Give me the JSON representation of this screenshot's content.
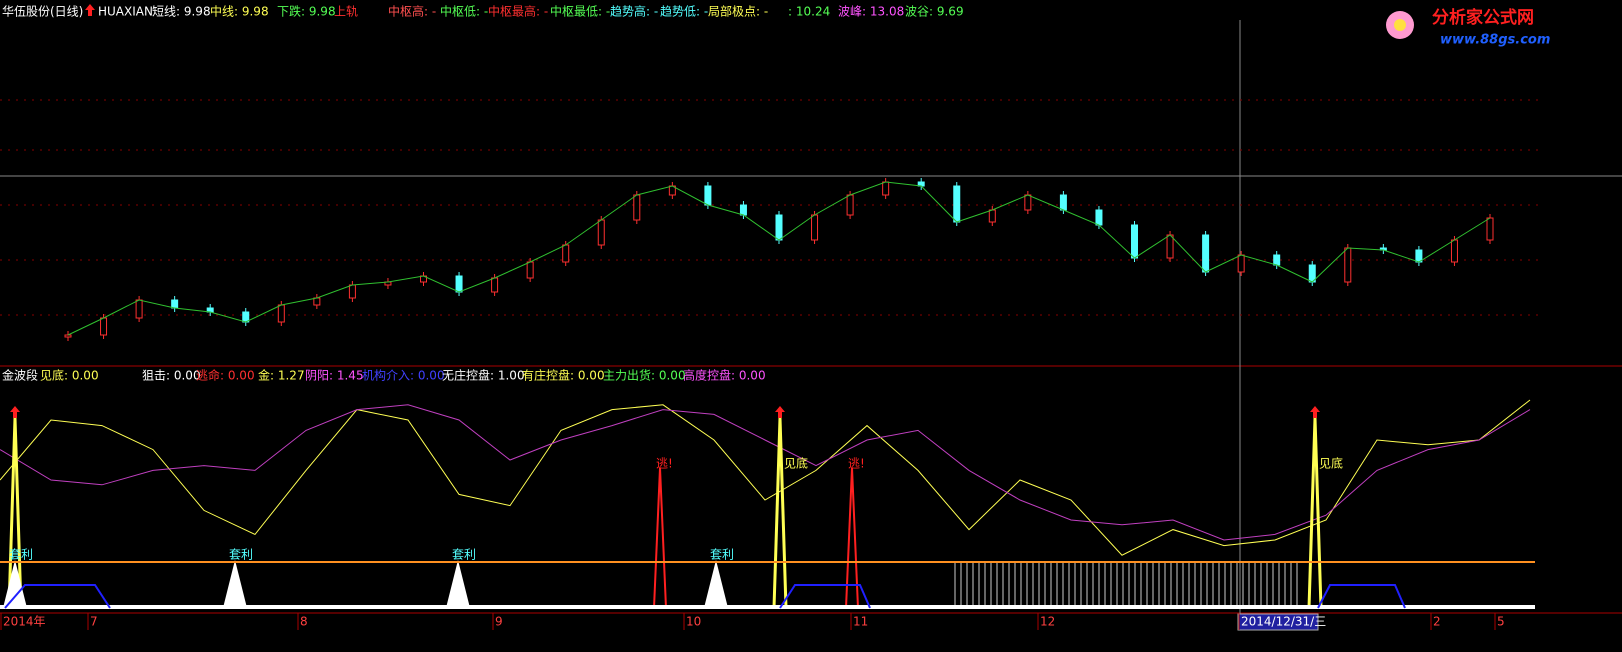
{
  "header": {
    "items": [
      {
        "text": "华伍股份(日线)",
        "color": "#ffffff"
      },
      {
        "text": "HUAXIAN",
        "color": "#ffffff"
      },
      {
        "text": "短线: 9.98",
        "color": "#ffffff"
      },
      {
        "text": "中线: 9.98",
        "color": "#ffff54"
      },
      {
        "text": "下跌: 9.98",
        "color": "#54ff54"
      },
      {
        "text": "上轨",
        "color": "#ff3030"
      },
      {
        "text": "中枢高: -",
        "color": "#ff5050"
      },
      {
        "text": "中枢低: -",
        "color": "#54ff54"
      },
      {
        "text": "中枢最高: -",
        "color": "#ff3030"
      },
      {
        "text": "中枢最低: -",
        "color": "#54ff54"
      },
      {
        "text": "趋势高: -",
        "color": "#54ffff"
      },
      {
        "text": "趋势低: -",
        "color": "#54ffff"
      },
      {
        "text": "局部极点: -",
        "color": "#ffff54"
      },
      {
        "text": ": 10.24",
        "color": "#54ff54"
      },
      {
        "text": "波峰: 13.08",
        "color": "#ff54ff"
      },
      {
        "text": "波谷: 9.69",
        "color": "#54ff54"
      }
    ]
  },
  "indicator_bar": {
    "items": [
      {
        "text": "金波段",
        "color": "#ffffff"
      },
      {
        "text": "见底: 0.00",
        "color": "#ffff54"
      },
      {
        "text": "狙击: 0.00",
        "color": "#ffffff"
      },
      {
        "text": "逃命: 0.00",
        "color": "#ff3030"
      },
      {
        "text": "金: 1.27",
        "color": "#ffff54"
      },
      {
        "text": "阴阳: 1.45",
        "color": "#ff54ff"
      },
      {
        "text": "机构介入: 0.00",
        "color": "#4040ff"
      },
      {
        "text": "无庄控盘: 1.00",
        "color": "#ffffff"
      },
      {
        "text": "有庄控盘: 0.00",
        "color": "#ffff54"
      },
      {
        "text": "主力出货: 0.00",
        "color": "#54ff54"
      },
      {
        "text": "高度控盘: 0.00",
        "color": "#ff54ff"
      }
    ]
  },
  "dates": [
    "2014年",
    "7",
    "8",
    "9",
    "10",
    "11",
    "12",
    "2014/12/31/三",
    "2",
    "5"
  ],
  "annotations": {
    "bottom": "见底",
    "escape": "逃!",
    "arbitrage": "套利"
  },
  "logo": {
    "title": "分析家公式网",
    "url": "www.88gs.com"
  },
  "price_chart": {
    "up_color": "#ff3030",
    "down_color": "#54ffff",
    "closes": [
      6.73,
      7.41,
      8.13,
      7.81,
      7.65,
      7.25,
      7.93,
      8.21,
      8.73,
      8.85,
      9.09,
      8.45,
      9.01,
      9.65,
      10.33,
      11.33,
      12.33,
      12.69,
      11.93,
      11.53,
      10.53,
      11.53,
      12.33,
      12.85,
      12.69,
      11.25,
      11.73,
      12.33,
      11.73,
      11.13,
      9.81,
      10.73,
      9.25,
      9.93,
      9.53,
      8.85,
      10.21,
      10.13,
      9.65,
      10.53,
      11.41
    ]
  },
  "oscillator": {
    "series": [
      {
        "color": "#ffff54",
        "values": [
          50,
          87.5,
          84,
          69,
          31,
          16,
          56,
          94,
          87.5,
          41,
          34,
          81,
          94,
          97,
          75,
          37.5,
          56,
          84,
          56,
          19,
          50,
          37.5,
          3,
          19,
          9,
          12.5,
          25,
          75,
          72,
          75,
          100
        ]
      },
      {
        "color": "#c040c0",
        "values": [
          69,
          50,
          47,
          56,
          59,
          56,
          81,
          94,
          97,
          87.5,
          62.5,
          75,
          84,
          94,
          91,
          75,
          59,
          75,
          81,
          56,
          37.5,
          25,
          22,
          25,
          12.5,
          16,
          28,
          56,
          69,
          75,
          94
        ]
      }
    ]
  }
}
